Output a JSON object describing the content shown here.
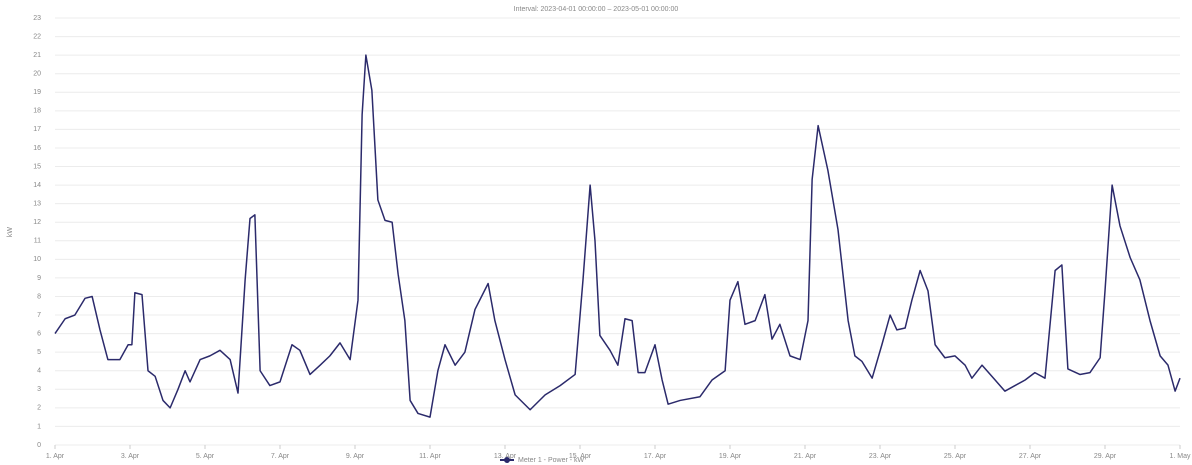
{
  "chart_data": {
    "type": "line",
    "title": "Interval: 2023-04-01 00:00:00 – 2023-05-01 00:00:00",
    "y_label": "kW",
    "xlim": [
      0,
      30
    ],
    "xticks": [
      {
        "value": 0,
        "label": "1. Apr"
      },
      {
        "value": 2,
        "label": "3. Apr"
      },
      {
        "value": 4,
        "label": "5. Apr"
      },
      {
        "value": 6,
        "label": "7. Apr"
      },
      {
        "value": 8,
        "label": "9. Apr"
      },
      {
        "value": 10,
        "label": "11. Apr"
      },
      {
        "value": 12,
        "label": "13. Apr"
      },
      {
        "value": 14,
        "label": "15. Apr"
      },
      {
        "value": 16,
        "label": "17. Apr"
      },
      {
        "value": 18,
        "label": "19. Apr"
      },
      {
        "value": 20,
        "label": "21. Apr"
      },
      {
        "value": 22,
        "label": "23. Apr"
      },
      {
        "value": 24,
        "label": "25. Apr"
      },
      {
        "value": 26,
        "label": "27. Apr"
      },
      {
        "value": 28,
        "label": "29. Apr"
      },
      {
        "value": 30,
        "label": "1. May"
      }
    ],
    "ylim": [
      0,
      23
    ],
    "yticks": [
      0,
      1,
      2,
      3,
      4,
      5,
      6,
      7,
      8,
      9,
      10,
      11,
      12,
      13,
      14,
      15,
      16,
      17,
      18,
      19,
      20,
      21,
      22,
      23
    ],
    "grid": true,
    "x": [
      0,
      0.27,
      0.53,
      0.8,
      0.99,
      1.2,
      1.41,
      1.73,
      1.95,
      2.05,
      2.13,
      2.32,
      2.48,
      2.67,
      2.88,
      3.07,
      3.28,
      3.47,
      3.6,
      3.87,
      4.13,
      4.4,
      4.67,
      4.88,
      5.07,
      5.2,
      5.33,
      5.47,
      5.73,
      6.0,
      6.32,
      6.53,
      6.8,
      7.07,
      7.33,
      7.6,
      7.87,
      8.08,
      8.19,
      8.29,
      8.45,
      8.61,
      8.8,
      8.99,
      9.15,
      9.33,
      9.47,
      9.68,
      10.0,
      10.21,
      10.4,
      10.67,
      10.93,
      11.2,
      11.55,
      11.73,
      12.0,
      12.27,
      12.67,
      13.07,
      13.47,
      13.87,
      14.08,
      14.27,
      14.4,
      14.53,
      14.8,
      15.01,
      15.2,
      15.39,
      15.55,
      15.73,
      16.0,
      16.19,
      16.35,
      16.67,
      17.2,
      17.52,
      17.87,
      18.0,
      18.21,
      18.4,
      18.67,
      18.93,
      19.12,
      19.33,
      19.6,
      19.87,
      20.08,
      20.19,
      20.35,
      20.61,
      20.88,
      21.15,
      21.33,
      21.52,
      21.79,
      22.05,
      22.27,
      22.45,
      22.67,
      22.85,
      23.07,
      23.28,
      23.47,
      23.73,
      24.0,
      24.27,
      24.45,
      24.72,
      25.07,
      25.33,
      25.6,
      25.87,
      26.13,
      26.4,
      26.67,
      26.85,
      27.01,
      27.33,
      27.6,
      27.87,
      28.0,
      28.19,
      28.4,
      28.67,
      28.93,
      29.2,
      29.47,
      29.68,
      29.87,
      30.0
    ],
    "series": [
      {
        "name": "Meter 1 - Power - kW",
        "color": "#2b2a6b",
        "values": [
          6.0,
          6.8,
          7.0,
          7.9,
          8.0,
          6.2,
          4.6,
          4.6,
          5.4,
          5.4,
          8.2,
          8.1,
          4.0,
          3.7,
          2.4,
          2.0,
          3.0,
          4.0,
          3.4,
          4.6,
          4.8,
          5.1,
          4.6,
          2.8,
          8.9,
          12.2,
          12.4,
          4.0,
          3.2,
          3.4,
          5.4,
          5.1,
          3.8,
          4.3,
          4.8,
          5.5,
          4.6,
          7.8,
          17.8,
          21.0,
          19.1,
          13.2,
          12.1,
          12.0,
          9.2,
          6.7,
          2.4,
          1.7,
          1.5,
          4.0,
          5.4,
          4.3,
          5.0,
          7.3,
          8.7,
          6.7,
          4.6,
          2.7,
          1.9,
          2.7,
          3.2,
          3.8,
          8.9,
          14.0,
          11.0,
          5.9,
          5.1,
          4.3,
          6.8,
          6.7,
          3.9,
          3.9,
          5.4,
          3.5,
          2.2,
          2.4,
          2.6,
          3.5,
          4.0,
          7.8,
          8.8,
          6.5,
          6.7,
          8.1,
          5.7,
          6.5,
          4.8,
          4.6,
          6.7,
          14.3,
          17.2,
          14.8,
          11.6,
          6.7,
          4.8,
          4.5,
          3.6,
          5.4,
          7.0,
          6.2,
          6.3,
          7.8,
          9.4,
          8.3,
          5.4,
          4.7,
          4.8,
          4.3,
          3.6,
          4.3,
          3.5,
          2.9,
          3.2,
          3.5,
          3.9,
          3.6,
          9.4,
          9.7,
          4.1,
          3.8,
          3.9,
          4.7,
          8.3,
          14.0,
          11.8,
          10.1,
          8.9,
          6.7,
          4.8,
          4.3,
          2.9,
          3.6
        ]
      }
    ]
  }
}
